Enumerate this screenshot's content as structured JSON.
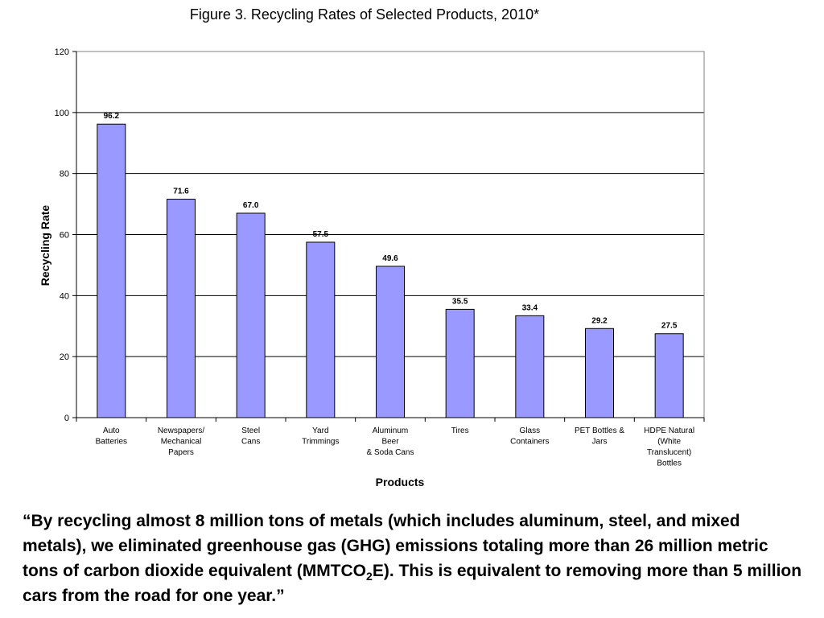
{
  "chart_data": {
    "type": "bar",
    "title": "Figure 3. Recycling Rates of Selected Products, 2010*",
    "xlabel": "Products",
    "ylabel": "Recycling Rate",
    "ylim": [
      0,
      120
    ],
    "yticks": [
      "0",
      "20",
      "40",
      "60",
      "80",
      "100",
      "120"
    ],
    "grid": true,
    "bar_color": "#9999ff",
    "categories": [
      [
        "Auto",
        "Batteries"
      ],
      [
        "Newspapers/",
        "Mechanical",
        "Papers"
      ],
      [
        "Steel",
        "Cans"
      ],
      [
        "Yard",
        "Trimmings"
      ],
      [
        "Aluminum",
        "Beer",
        "& Soda Cans"
      ],
      [
        "Tires"
      ],
      [
        "Glass",
        "Containers"
      ],
      [
        "PET Bottles  &",
        "Jars"
      ],
      [
        "HDPE Natural",
        "(White",
        "Translucent)",
        "Bottles"
      ]
    ],
    "values": [
      96.2,
      71.6,
      67.0,
      57.5,
      49.6,
      35.5,
      33.4,
      29.2,
      27.5
    ],
    "value_labels": [
      "96.2",
      "71.6",
      "67.0",
      "57.5",
      "49.6",
      "35.5",
      "33.4",
      "29.2",
      "27.5"
    ]
  },
  "quote": {
    "before": "“By recycling almost 8 million tons of metals (which includes aluminum, steel, and mixed metals), we eliminated greenhouse gas (GHG) emissions totaling more than 26 million metric tons of carbon dioxide equivalent (MMTCO",
    "subscript": "2",
    "after": "E). This is equivalent to removing more than 5 million cars from the road for one year.”"
  }
}
